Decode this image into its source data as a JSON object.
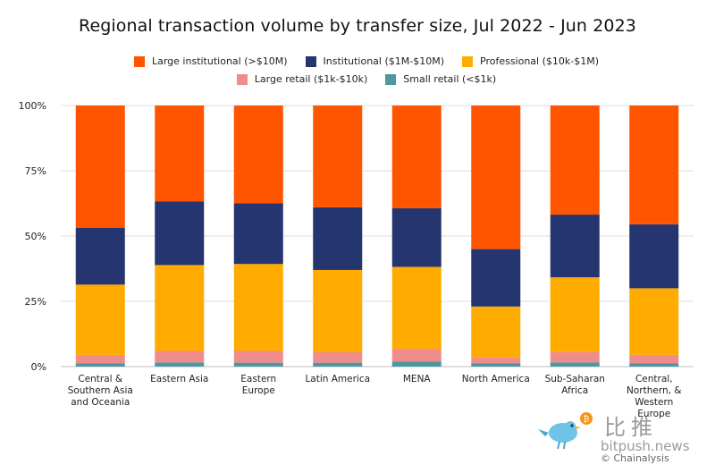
{
  "chart_data": {
    "type": "bar",
    "stacked": true,
    "title": "Regional transaction volume by transfer size, Jul 2022 - Jun 2023",
    "categories": [
      [
        "Central &",
        "Southern Asia",
        "and Oceania"
      ],
      [
        "Eastern Asia"
      ],
      [
        "Eastern",
        "Europe"
      ],
      [
        "Latin America"
      ],
      [
        "MENA"
      ],
      [
        "North America"
      ],
      [
        "Sub-Saharan",
        "Africa"
      ],
      [
        "Central,",
        "Northern, &",
        "Western",
        "Europe"
      ]
    ],
    "y_ticks": [
      "0%",
      "25%",
      "50%",
      "75%",
      "100%"
    ],
    "ylim": [
      0,
      100
    ],
    "grid": true,
    "legend_position": "top",
    "series": [
      {
        "name": "Small retail (<$1k)",
        "color": "#4f96a0",
        "values": [
          1.2,
          1.6,
          1.5,
          1.5,
          2.0,
          1.2,
          1.6,
          1.2
        ]
      },
      {
        "name": "Large retail ($1k-$10k)",
        "color": "#f08c8c",
        "values": [
          3.3,
          4.4,
          4.5,
          4.0,
          4.8,
          2.3,
          4.0,
          3.3
        ]
      },
      {
        "name": "Professional ($10k-$1M)",
        "color": "#ffab00",
        "values": [
          26.9,
          32.9,
          33.3,
          31.5,
          31.4,
          19.5,
          28.6,
          25.5
        ]
      },
      {
        "name": "Institutional ($1M-$10M)",
        "color": "#253570",
        "values": [
          21.8,
          24.4,
          23.3,
          24.0,
          22.5,
          22.0,
          24.0,
          24.5
        ]
      },
      {
        "name": "Large institutional (>$10M)",
        "color": "#ff5500",
        "values": [
          46.8,
          36.7,
          37.4,
          39.0,
          39.3,
          55.0,
          41.8,
          45.5
        ]
      }
    ],
    "legend_order": [
      4,
      3,
      2,
      1,
      0
    ]
  },
  "watermark": {
    "chinese": "比推",
    "url": "bitpush.news",
    "copyright": "© Chainalysis"
  }
}
